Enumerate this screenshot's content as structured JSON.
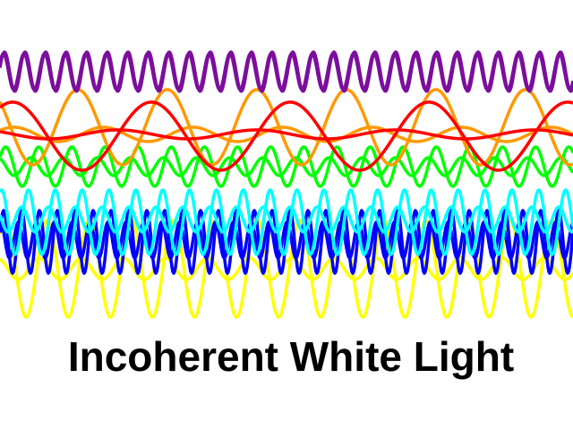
{
  "title": "Incoherent White Light"
}
